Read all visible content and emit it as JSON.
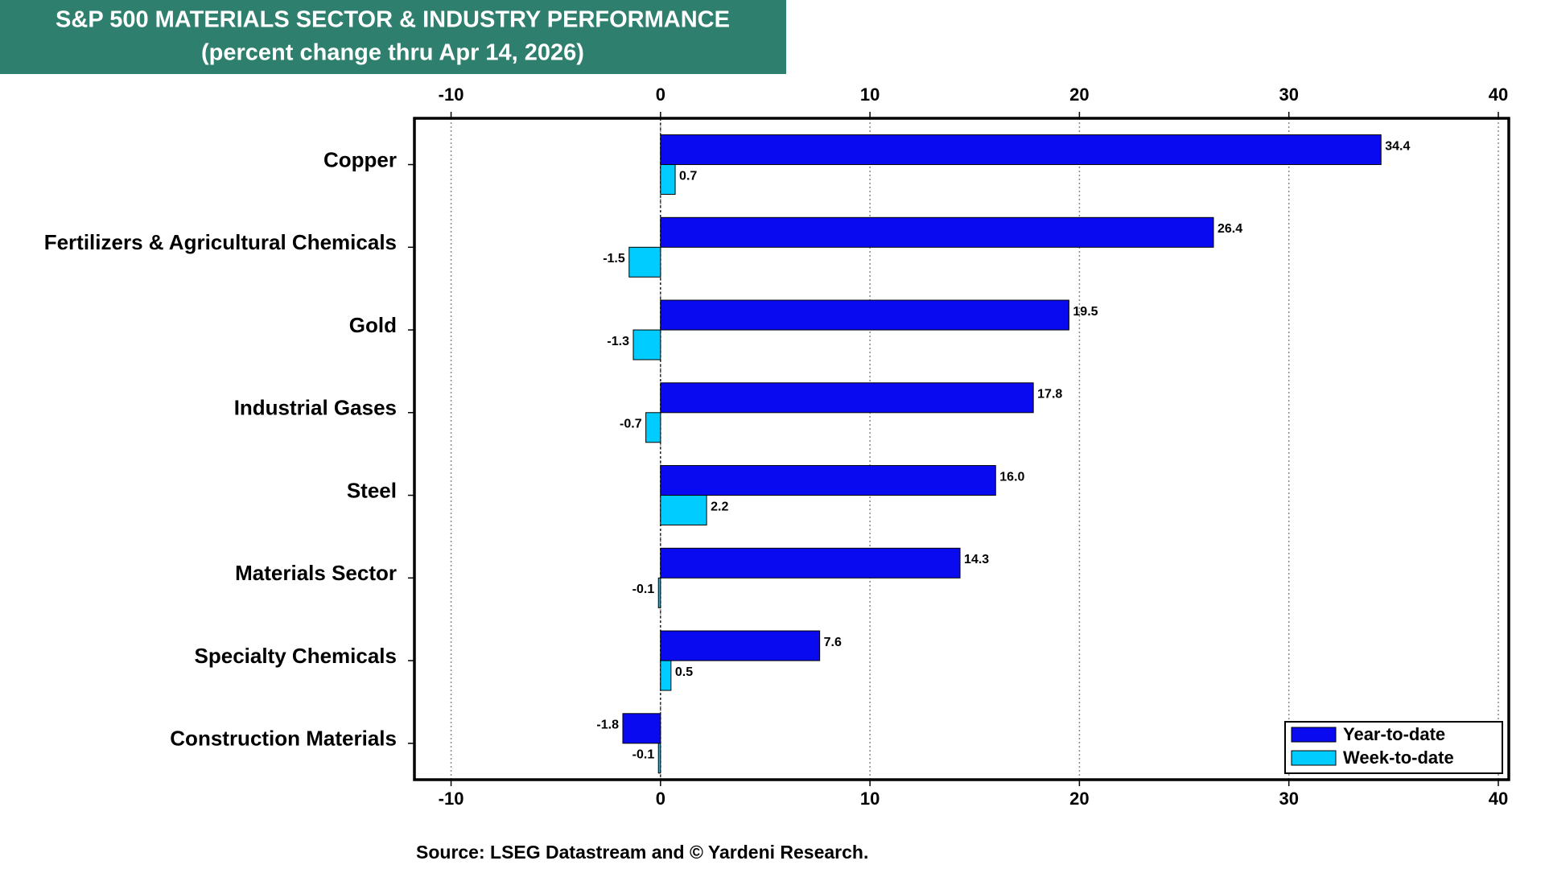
{
  "chart_data": {
    "type": "hbar",
    "title": "S&P 500 MATERIALS SECTOR & INDUSTRY PERFORMANCE",
    "subtitle": "(percent change thru Apr 14, 2026)",
    "source": "Source: LSEG Datastream and © Yardeni Research.",
    "categories": [
      "Copper",
      "Fertilizers & Agricultural Chemicals",
      "Gold",
      "Industrial Gases",
      "Steel",
      "Materials Sector",
      "Specialty Chemicals",
      "Construction Materials"
    ],
    "series": [
      {
        "name": "Year-to-date",
        "color": "#0a0af0",
        "values": [
          34.4,
          26.4,
          19.5,
          17.8,
          16.0,
          14.3,
          7.6,
          -1.8
        ],
        "value_labels": [
          "34.4",
          "26.4",
          "19.5",
          "17.8",
          "16.0",
          "14.3",
          "7.6",
          "-1.8"
        ]
      },
      {
        "name": "Week-to-date",
        "color": "#00ccff",
        "values": [
          0.7,
          -1.5,
          -1.3,
          -0.7,
          2.2,
          -0.1,
          0.5,
          -0.1
        ],
        "value_labels": [
          "0.7",
          "-1.5",
          "-1.3",
          "-0.7",
          "2.2",
          "-0.1",
          "0.5",
          "-0.1"
        ]
      }
    ],
    "xlim": [
      -11.75,
      40.5
    ],
    "xticks": [
      -10,
      0,
      10,
      20,
      30,
      40
    ],
    "grid": true,
    "legend": "bottom-right"
  }
}
